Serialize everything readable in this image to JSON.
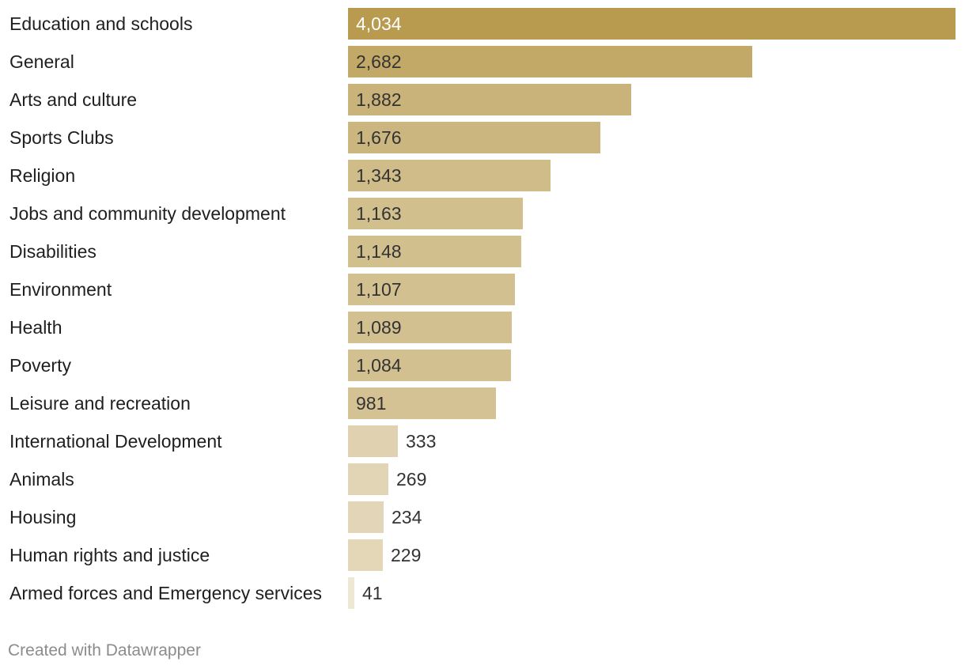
{
  "chart_data": {
    "type": "bar",
    "orientation": "horizontal",
    "categories": [
      "Education and schools",
      "General",
      "Arts and culture",
      "Sports Clubs",
      "Religion",
      "Jobs and community development",
      "Disabilities",
      "Environment",
      "Health",
      "Poverty",
      "Leisure and recreation",
      "International Development",
      "Animals",
      "Housing",
      "Human rights and justice",
      "Armed forces and Emergency services"
    ],
    "values": [
      4034,
      2682,
      1882,
      1676,
      1343,
      1163,
      1148,
      1107,
      1089,
      1084,
      981,
      333,
      269,
      234,
      229,
      41
    ],
    "value_labels": [
      "4,034",
      "2,682",
      "1,882",
      "1,676",
      "1,343",
      "1,163",
      "1,148",
      "1,107",
      "1,089",
      "1,084",
      "981",
      "333",
      "269",
      "234",
      "229",
      "41"
    ],
    "xlim": [
      0,
      4034
    ],
    "grid": false,
    "legend": "none",
    "colors": {
      "bar_dark": "#b89b4e",
      "bar_light": "#efe7d6",
      "label_dark_bg": "#ffffff",
      "label_light_bg": "#333333"
    }
  },
  "footer": {
    "credit": "Created with Datawrapper"
  }
}
